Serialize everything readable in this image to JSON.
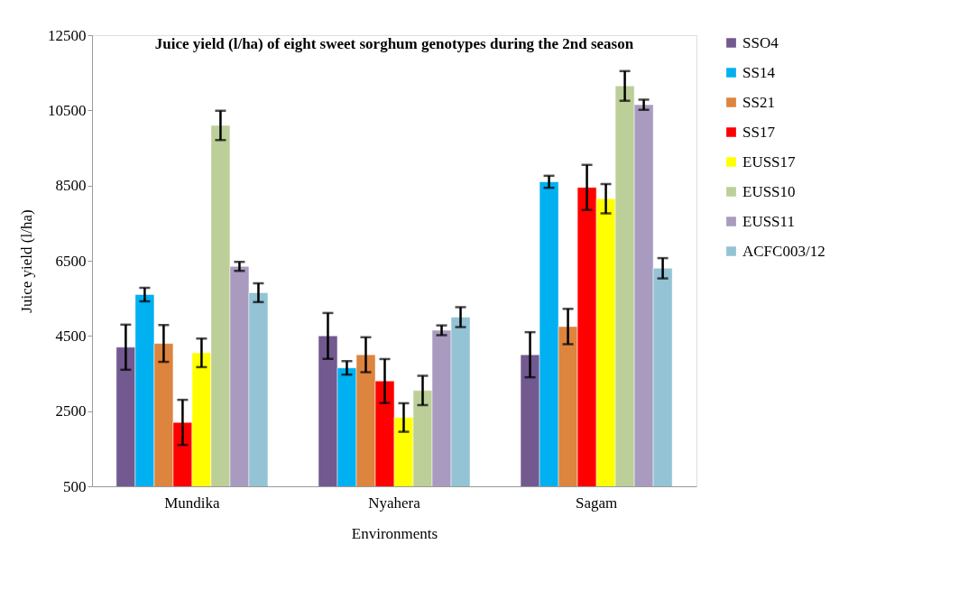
{
  "chart_data": {
    "type": "bar",
    "title": "Juice yield (l/ha) of eight sweet sorghum genotypes during the 2nd season",
    "xlabel": "Environments",
    "ylabel": "Juice yield (l/ha)",
    "categories": [
      "Mundika",
      "Nyahera",
      "Sagam"
    ],
    "series": [
      {
        "name": "SSO4",
        "color": "#72598f",
        "values": [
          4200,
          4500,
          4000
        ],
        "errors": [
          600,
          610,
          600
        ]
      },
      {
        "name": "SS14",
        "color": "#00b0f0",
        "values": [
          5600,
          3650,
          8600
        ],
        "errors": [
          180,
          180,
          160
        ]
      },
      {
        "name": "SS21",
        "color": "#dd843e",
        "values": [
          4300,
          4000,
          4750
        ],
        "errors": [
          490,
          465,
          470
        ]
      },
      {
        "name": "SS17",
        "color": "#ff0000",
        "values": [
          2200,
          3300,
          8450
        ],
        "errors": [
          600,
          585,
          600
        ]
      },
      {
        "name": "EUSS17",
        "color": "#ffff00",
        "values": [
          4050,
          2330,
          8150
        ],
        "errors": [
          380,
          380,
          390
        ]
      },
      {
        "name": "EUSS10",
        "color": "#bccf98",
        "values": [
          10100,
          3050,
          11150
        ],
        "errors": [
          390,
          390,
          395
        ]
      },
      {
        "name": "EUSS11",
        "color": "#a99bbf",
        "values": [
          6350,
          4650,
          10650
        ],
        "errors": [
          120,
          130,
          135
        ]
      },
      {
        "name": "ACFC003/12",
        "color": "#93c3d4",
        "values": [
          5650,
          5000,
          6300
        ],
        "errors": [
          250,
          265,
          270
        ]
      }
    ],
    "ylim": [
      500,
      12500
    ],
    "yticks": [
      500,
      2500,
      4500,
      6500,
      8500,
      10500,
      12500
    ],
    "grid": false,
    "legend": "right"
  }
}
